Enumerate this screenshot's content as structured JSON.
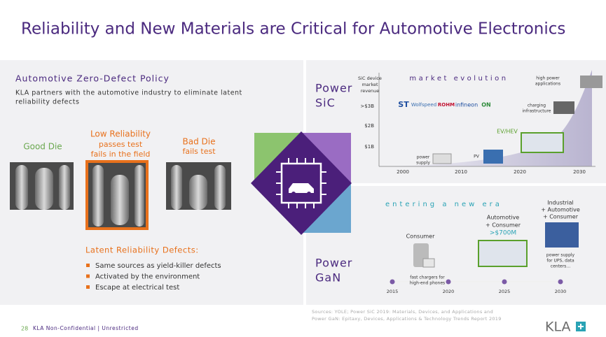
{
  "header": {
    "title": "Reliability and New Materials are Critical for Automotive Electronics"
  },
  "left": {
    "heading": "Automotive Zero-Defect Policy",
    "description": [
      "KLA partners with the automotive industry to eliminate latent",
      "reliability defects"
    ]
  },
  "dies": [
    {
      "label": [
        "Good Die"
      ],
      "note": []
    },
    {
      "label": [
        "Low Reliability"
      ],
      "note": [
        "passes test",
        "fails in the field"
      ]
    },
    {
      "label": [
        "Bad Die"
      ],
      "note": [
        "fails test"
      ]
    }
  ],
  "defects": {
    "heading": "Latent Reliability Defects:",
    "items": [
      "Same sources as yield-killer defects",
      "Activated by the environment",
      "Escape at electrical test"
    ]
  },
  "center": {
    "sic": [
      "Power",
      "SiC"
    ],
    "gan": [
      "Power",
      "GaN"
    ]
  },
  "sic_chart": {
    "title": "market evolution",
    "y_label": [
      "SiC device",
      "market",
      "revenue"
    ],
    "y_ticks": [
      ">$3B",
      "$2B",
      "$1B"
    ],
    "x_ticks": [
      "2000",
      "2010",
      "2020",
      "2030"
    ],
    "annotations": {
      "high_power": [
        "high power",
        "applications"
      ],
      "charging": [
        "charging",
        "infrastructure"
      ],
      "ev": "EV/HEV",
      "pv": "PV",
      "power_supply": [
        "power",
        "supply"
      ]
    },
    "logos": [
      "ST",
      "Wolfspeed",
      "ROHM",
      "infineon",
      "ON"
    ]
  },
  "gan_chart": {
    "title": "entering a new era",
    "stages": [
      {
        "label": [
          "Consumer"
        ],
        "note": [
          "fast chargers for",
          "high-end phones"
        ]
      },
      {
        "label": [
          "Automotive",
          "+ Consumer"
        ],
        "value": ">$700M",
        "note": []
      },
      {
        "label": [
          "Industrial",
          "+ Automotive",
          "+ Consumer"
        ],
        "note": [
          "power supply",
          "for UPS, data",
          "centers…"
        ]
      }
    ],
    "timeline": [
      "2015",
      "2020",
      "2025",
      "2030"
    ]
  },
  "sources": [
    "Sources: YOLE; Power SiC 2019: Materials, Devices, and Applications and",
    "Power GaN: Epitaxy, Devices, Applications & Technology Trends Report 2019"
  ],
  "footer": {
    "page": "28",
    "classification": "KLA Non-Confidential | Unrestricted",
    "logo": "KLA"
  }
}
